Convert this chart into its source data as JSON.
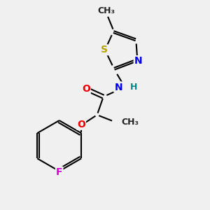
{
  "background_color": "#f0f0f0",
  "bond_color": "#000000",
  "atom_colors": {
    "S": "#b8a000",
    "N": "#0000ee",
    "O": "#ee0000",
    "F": "#dd00dd",
    "NH_color": "#008888",
    "C": "#000000"
  },
  "figsize": [
    3.0,
    3.0
  ],
  "dpi": 100,
  "xlim": [
    55,
    245
  ],
  "ylim": [
    20,
    285
  ]
}
